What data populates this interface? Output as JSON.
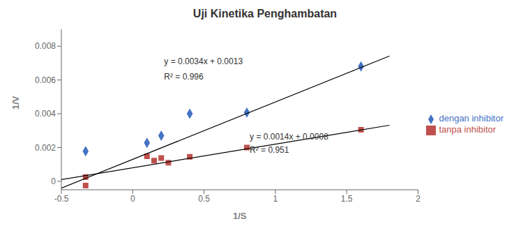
{
  "chart_data": {
    "type": "scatter",
    "title": "Uji Kinetika Penghambatan",
    "x_label": "1/S",
    "y_label": "1/V",
    "xlim": [
      -0.5,
      2.0
    ],
    "ylim": [
      -0.0005,
      0.009
    ],
    "xticks": [
      -0.5,
      0,
      0.5,
      1,
      1.5,
      2
    ],
    "yticks": [
      0,
      0.002,
      0.004,
      0.006,
      0.008
    ],
    "grid": false,
    "legend": "right",
    "series": [
      {
        "name": "dengan inhibitor",
        "type": "scatter",
        "color": "#4472C4",
        "marker": "diamond",
        "x": [
          -0.33,
          0.1,
          0.2,
          0.4,
          0.8,
          1.6
        ],
        "values": [
          0.00178,
          0.00228,
          0.0027,
          0.004,
          0.00407,
          0.0068
        ]
      },
      {
        "name": "tanpa inhibitor",
        "type": "scatter",
        "color": "#C0504D",
        "marker": "square",
        "x": [
          -0.33,
          -0.33,
          0.1,
          0.15,
          0.2,
          0.25,
          0.4,
          0.8,
          1.6
        ],
        "values": [
          0.00025,
          -0.00025,
          0.00148,
          0.00122,
          0.00138,
          0.0011,
          0.00145,
          0.002,
          0.00305
        ]
      },
      {
        "type": "line",
        "color": "#000000",
        "x": [
          -0.5,
          1.8
        ],
        "values": [
          -0.0004,
          0.00742
        ]
      },
      {
        "type": "line",
        "color": "#000000",
        "x": [
          -0.5,
          1.8
        ],
        "values": [
          0.0001,
          0.00332
        ]
      }
    ],
    "annotations": [
      {
        "text": "y = 0.0034x + 0.0013",
        "x": 0.22,
        "y": 0.0071
      },
      {
        "text": "R² = 0.996",
        "x": 0.22,
        "y": 0.0062
      },
      {
        "text": "y = 0.0014x + 0.0008",
        "x": 0.82,
        "y": 0.00265
      },
      {
        "text": "R² = 0.951",
        "x": 0.82,
        "y": 0.00185
      }
    ]
  }
}
